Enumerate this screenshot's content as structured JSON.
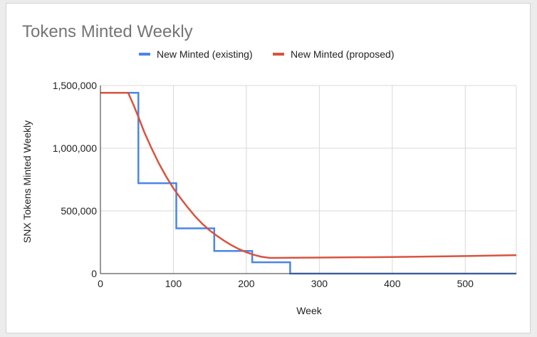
{
  "chart_data": {
    "type": "line",
    "title": "Tokens Minted Weekly",
    "xlabel": "Week",
    "ylabel": "SNX Tokens Minted Weekly",
    "xlim": [
      0,
      570
    ],
    "ylim": [
      0,
      1500000
    ],
    "x_ticks": [
      0,
      100,
      200,
      300,
      400,
      500
    ],
    "x_tick_labels": [
      "0",
      "100",
      "200",
      "300",
      "400",
      "500"
    ],
    "y_ticks": [
      0,
      500000,
      1000000,
      1500000
    ],
    "y_tick_labels": [
      "0",
      "500,000",
      "1,000,000",
      "1,500,000"
    ],
    "grid": true,
    "legend_position": "top",
    "series": [
      {
        "name": "New Minted (existing)",
        "color": "#4a86e8",
        "step": true,
        "points": [
          [
            0,
            1442000
          ],
          [
            52,
            1442000
          ],
          [
            52,
            721000
          ],
          [
            104,
            721000
          ],
          [
            104,
            360500
          ],
          [
            156,
            360500
          ],
          [
            156,
            180250
          ],
          [
            208,
            180250
          ],
          [
            208,
            90125
          ],
          [
            260,
            90125
          ],
          [
            260,
            0
          ],
          [
            570,
            0
          ]
        ]
      },
      {
        "name": "New Minted (proposed)",
        "color": "#d9533f",
        "step": false,
        "points": [
          [
            0,
            1442000
          ],
          [
            38,
            1442000
          ],
          [
            45,
            1350000
          ],
          [
            52,
            1250000
          ],
          [
            60,
            1130000
          ],
          [
            70,
            1000000
          ],
          [
            80,
            880000
          ],
          [
            90,
            775000
          ],
          [
            100,
            680000
          ],
          [
            110,
            600000
          ],
          [
            120,
            525000
          ],
          [
            130,
            455000
          ],
          [
            140,
            395000
          ],
          [
            150,
            343000
          ],
          [
            160,
            300000
          ],
          [
            170,
            260000
          ],
          [
            180,
            225000
          ],
          [
            190,
            195000
          ],
          [
            200,
            170000
          ],
          [
            210,
            150000
          ],
          [
            220,
            135000
          ],
          [
            232,
            125000
          ],
          [
            300,
            128000
          ],
          [
            400,
            132000
          ],
          [
            500,
            140000
          ],
          [
            570,
            147000
          ]
        ]
      }
    ]
  }
}
